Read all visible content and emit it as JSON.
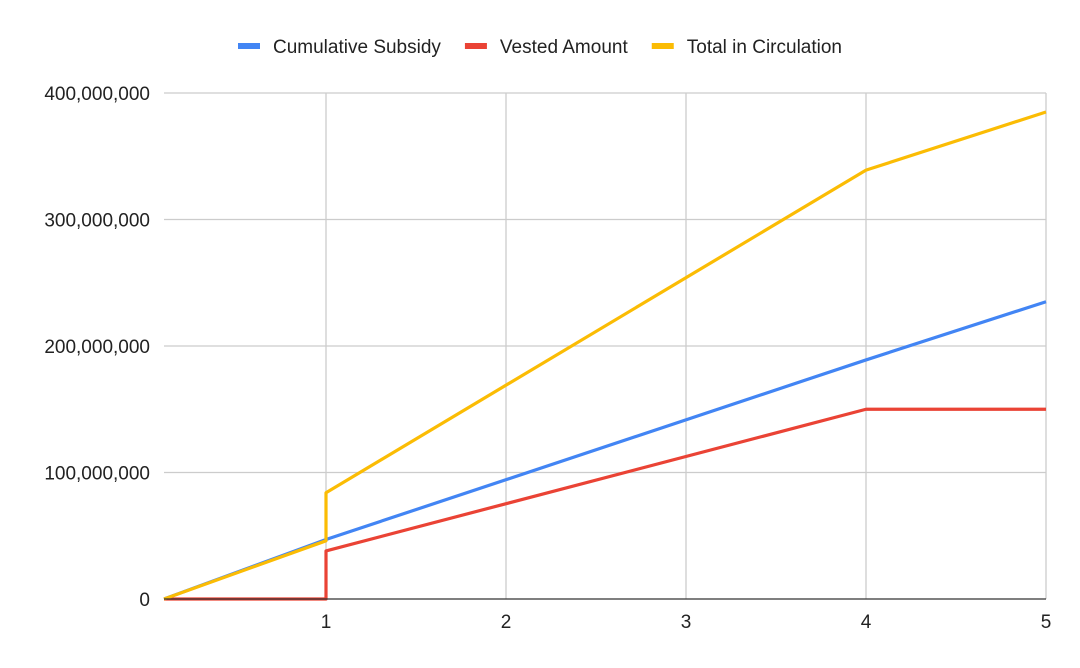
{
  "chart_data": {
    "type": "line",
    "title": "",
    "xlabel": "",
    "ylabel": "",
    "xlim": [
      0.1,
      5
    ],
    "ylim": [
      0,
      400000000
    ],
    "x_ticks": [
      {
        "value": 1,
        "label": "1"
      },
      {
        "value": 2,
        "label": "2"
      },
      {
        "value": 3,
        "label": "3"
      },
      {
        "value": 4,
        "label": "4"
      },
      {
        "value": 5,
        "label": "5"
      }
    ],
    "y_ticks": [
      {
        "value": 0,
        "label": "0"
      },
      {
        "value": 100000000,
        "label": "100,000,000"
      },
      {
        "value": 200000000,
        "label": "200,000,000"
      },
      {
        "value": 300000000,
        "label": "300,000,000"
      },
      {
        "value": 400000000,
        "label": "400,000,000"
      }
    ],
    "grid": true,
    "legend_position": "top",
    "series": [
      {
        "name": "Cumulative Subsidy",
        "color": "#4285F4",
        "points": [
          [
            0.1,
            0
          ],
          [
            1,
            47000000
          ],
          [
            4,
            189000000
          ],
          [
            5,
            235000000
          ]
        ]
      },
      {
        "name": "Vested Amount",
        "color": "#EA4335",
        "points": [
          [
            0.1,
            0
          ],
          [
            1,
            0
          ],
          [
            1,
            38000000
          ],
          [
            4,
            150000000
          ],
          [
            5,
            150000000
          ]
        ]
      },
      {
        "name": "Total in Circulation",
        "color": "#FBBC04",
        "points": [
          [
            0.1,
            0
          ],
          [
            1,
            46000000
          ],
          [
            1,
            84000000
          ],
          [
            4,
            339000000
          ],
          [
            5,
            385000000
          ]
        ]
      }
    ]
  }
}
